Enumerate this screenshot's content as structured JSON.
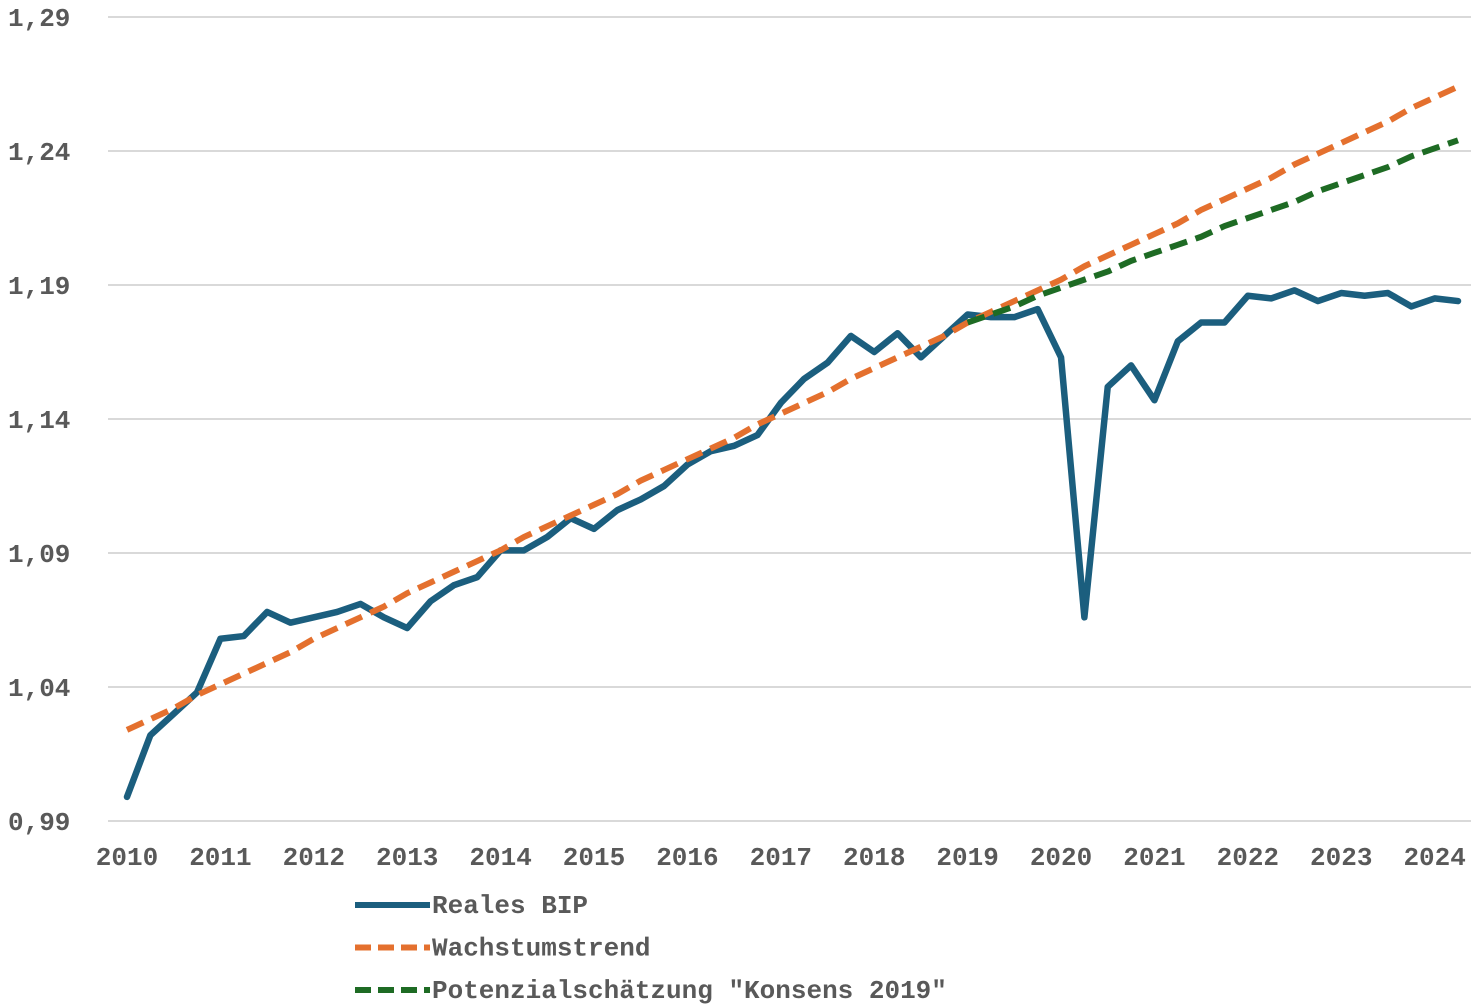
{
  "chart_data": {
    "type": "line",
    "categories": [
      "2010",
      null,
      null,
      null,
      "2011",
      null,
      null,
      null,
      "2012",
      null,
      null,
      null,
      "2013",
      null,
      null,
      null,
      "2014",
      null,
      null,
      null,
      "2015",
      null,
      null,
      null,
      "2016",
      null,
      null,
      null,
      "2017",
      null,
      null,
      null,
      "2018",
      null,
      null,
      null,
      "2019",
      null,
      null,
      null,
      "2020",
      null,
      null,
      null,
      "2021",
      null,
      null,
      null,
      "2022",
      null,
      null,
      null,
      "2023",
      null,
      null,
      null,
      "2024",
      null
    ],
    "ylim": [
      0.99,
      1.29
    ],
    "yticks": [
      {
        "value": 0.99,
        "label": "0,99"
      },
      {
        "value": 1.04,
        "label": "1,04"
      },
      {
        "value": 1.09,
        "label": "1,09"
      },
      {
        "value": 1.14,
        "label": "1,14"
      },
      {
        "value": 1.19,
        "label": "1,19"
      },
      {
        "value": 1.24,
        "label": "1,24"
      },
      {
        "value": 1.29,
        "label": "1,29"
      }
    ],
    "grid": true,
    "legend": "bottom",
    "series": [
      {
        "name": "Reales BIP",
        "color": "#1b5e7e",
        "dashed": false,
        "values": [
          0.999,
          1.022,
          1.03,
          1.038,
          1.058,
          1.059,
          1.068,
          1.064,
          1.066,
          1.068,
          1.071,
          1.066,
          1.062,
          1.072,
          1.078,
          1.081,
          1.091,
          1.091,
          1.096,
          1.103,
          1.099,
          1.106,
          1.11,
          1.115,
          1.123,
          1.128,
          1.13,
          1.134,
          1.146,
          1.155,
          1.161,
          1.171,
          1.165,
          1.172,
          1.163,
          1.171,
          1.179,
          1.178,
          1.178,
          1.181,
          1.163,
          1.066,
          1.152,
          1.16,
          1.147,
          1.169,
          1.176,
          1.176,
          1.186,
          1.185,
          1.188,
          1.184,
          1.187,
          1.186,
          1.187,
          1.182,
          1.185,
          1.184
        ]
      },
      {
        "name": "Wachstumstrend",
        "color": "#e4702e",
        "dashed": true,
        "values": [
          1.024,
          1.028,
          1.032,
          1.037,
          1.041,
          1.045,
          1.049,
          1.053,
          1.058,
          1.062,
          1.066,
          1.07,
          1.075,
          1.079,
          1.083,
          1.087,
          1.091,
          1.096,
          1.1,
          1.104,
          1.108,
          1.112,
          1.117,
          1.121,
          1.125,
          1.129,
          1.133,
          1.138,
          1.142,
          1.146,
          1.15,
          1.155,
          1.159,
          1.163,
          1.167,
          1.171,
          1.176,
          1.18,
          1.184,
          1.188,
          1.192,
          1.197,
          1.201,
          1.205,
          1.209,
          1.213,
          1.218,
          1.222,
          1.226,
          1.23,
          1.235,
          1.239,
          1.243,
          1.247,
          1.251,
          1.256,
          1.26,
          1.264
        ]
      },
      {
        "name": "Potenzialschätzung \"Konsens 2019\"",
        "color": "#1e6b24",
        "dashed": true,
        "values": [
          null,
          null,
          null,
          null,
          null,
          null,
          null,
          null,
          null,
          null,
          null,
          null,
          null,
          null,
          null,
          null,
          null,
          null,
          null,
          null,
          null,
          null,
          null,
          null,
          null,
          null,
          null,
          null,
          null,
          null,
          null,
          null,
          null,
          null,
          null,
          null,
          1.176,
          1.179,
          1.182,
          1.186,
          1.189,
          1.192,
          1.195,
          1.199,
          1.202,
          1.205,
          1.208,
          1.212,
          1.215,
          1.218,
          1.221,
          1.225,
          1.228,
          1.231,
          1.234,
          1.238,
          1.241,
          1.244
        ]
      }
    ]
  }
}
